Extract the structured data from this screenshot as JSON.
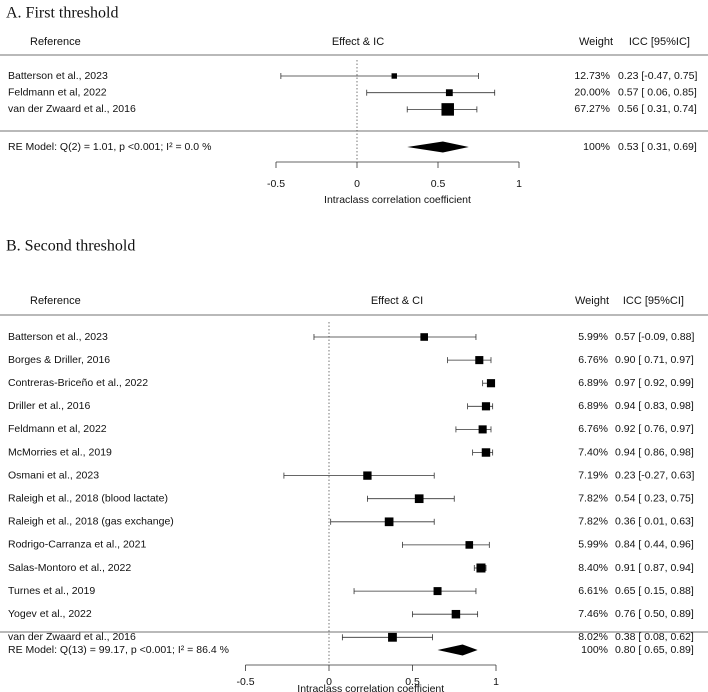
{
  "chart_data": [
    {
      "type": "forest",
      "title": "A. First threshold",
      "headers": {
        "reference": "Reference",
        "effect": "Effect & IC",
        "weight": "Weight",
        "icc": "ICC [95%IC]"
      },
      "studies": [
        {
          "reference": "Batterson et al., 2023",
          "est": 0.23,
          "lo": -0.47,
          "hi": 0.75,
          "weight": 12.73,
          "weight_text": "12.73%",
          "icc_text": "0.23 [-0.47, 0.75]"
        },
        {
          "reference": "Feldmann et al, 2022",
          "est": 0.57,
          "lo": 0.06,
          "hi": 0.85,
          "weight": 20.0,
          "weight_text": "20.00%",
          "icc_text": "0.57 [ 0.06, 0.85]"
        },
        {
          "reference": "van der Zwaard et al., 2016",
          "est": 0.56,
          "lo": 0.31,
          "hi": 0.74,
          "weight": 67.27,
          "weight_text": "67.27%",
          "icc_text": "0.56 [ 0.31, 0.74]"
        }
      ],
      "summary": {
        "label": "RE Model: Q(2) = 1.01, p <0.001; I² = 0.0 %",
        "est": 0.53,
        "lo": 0.31,
        "hi": 0.69,
        "weight_text": "100%",
        "icc_text": "0.53 [ 0.31, 0.69]"
      },
      "x_ticks": [
        -0.5,
        0,
        0.5,
        1
      ],
      "x_tick_labels": [
        "-0.5",
        "0",
        "0.5",
        "1"
      ],
      "xlim": [
        -0.5,
        1
      ],
      "xlabel": "Intraclass correlation coefficient"
    },
    {
      "type": "forest",
      "title": "B. Second threshold",
      "headers": {
        "reference": "Reference",
        "effect": "Effect & CI",
        "weight": "Weight",
        "icc": "ICC [95%CI]"
      },
      "studies": [
        {
          "reference": "Batterson et al., 2023",
          "est": 0.57,
          "lo": -0.09,
          "hi": 0.88,
          "weight": 5.99,
          "weight_text": "5.99%",
          "icc_text": "0.57 [-0.09, 0.88]"
        },
        {
          "reference": "Borges & Driller, 2016",
          "est": 0.9,
          "lo": 0.71,
          "hi": 0.97,
          "weight": 6.76,
          "weight_text": "6.76%",
          "icc_text": "0.90 [ 0.71, 0.97]"
        },
        {
          "reference": "Contreras-Briceño et al., 2022",
          "est": 0.97,
          "lo": 0.92,
          "hi": 0.99,
          "weight": 6.89,
          "weight_text": "6.89%",
          "icc_text": "0.97 [ 0.92, 0.99]"
        },
        {
          "reference": "Driller et al., 2016",
          "est": 0.94,
          "lo": 0.83,
          "hi": 0.98,
          "weight": 6.89,
          "weight_text": "6.89%",
          "icc_text": "0.94 [ 0.83, 0.98]"
        },
        {
          "reference": "Feldmann et al, 2022",
          "est": 0.92,
          "lo": 0.76,
          "hi": 0.97,
          "weight": 6.76,
          "weight_text": "6.76%",
          "icc_text": "0.92 [ 0.76, 0.97]"
        },
        {
          "reference": "McMorries et al., 2019",
          "est": 0.94,
          "lo": 0.86,
          "hi": 0.98,
          "weight": 7.4,
          "weight_text": "7.40%",
          "icc_text": "0.94 [ 0.86, 0.98]"
        },
        {
          "reference": "Osmani et al., 2023",
          "est": 0.23,
          "lo": -0.27,
          "hi": 0.63,
          "weight": 7.19,
          "weight_text": "7.19%",
          "icc_text": "0.23 [-0.27, 0.63]"
        },
        {
          "reference": "Raleigh et al., 2018 (blood lactate)",
          "est": 0.54,
          "lo": 0.23,
          "hi": 0.75,
          "weight": 7.82,
          "weight_text": "7.82%",
          "icc_text": "0.54 [ 0.23, 0.75]"
        },
        {
          "reference": "Raleigh et al., 2018 (gas exchange)",
          "est": 0.36,
          "lo": 0.01,
          "hi": 0.63,
          "weight": 7.82,
          "weight_text": "7.82%",
          "icc_text": "0.36 [ 0.01, 0.63]"
        },
        {
          "reference": "Rodrigo-Carranza et al., 2021",
          "est": 0.84,
          "lo": 0.44,
          "hi": 0.96,
          "weight": 5.99,
          "weight_text": "5.99%",
          "icc_text": "0.84 [ 0.44, 0.96]"
        },
        {
          "reference": "Salas-Montoro et al., 2022",
          "est": 0.91,
          "lo": 0.87,
          "hi": 0.94,
          "weight": 8.4,
          "weight_text": "8.40%",
          "icc_text": "0.91 [ 0.87, 0.94]"
        },
        {
          "reference": "Turnes et al., 2019",
          "est": 0.65,
          "lo": 0.15,
          "hi": 0.88,
          "weight": 6.61,
          "weight_text": "6.61%",
          "icc_text": "0.65 [ 0.15, 0.88]"
        },
        {
          "reference": "Yogev et al., 2022",
          "est": 0.76,
          "lo": 0.5,
          "hi": 0.89,
          "weight": 7.46,
          "weight_text": "7.46%",
          "icc_text": "0.76 [ 0.50, 0.89]"
        },
        {
          "reference": "van der Zwaard et al., 2016",
          "est": 0.38,
          "lo": 0.08,
          "hi": 0.62,
          "weight": 8.02,
          "weight_text": "8.02%",
          "icc_text": "0.38 [ 0.08, 0.62]"
        }
      ],
      "summary": {
        "label": "RE Model: Q(13) = 99.17, p <0.001; I² = 86.4 %",
        "est": 0.8,
        "lo": 0.65,
        "hi": 0.89,
        "weight_text": "100%",
        "icc_text": "0.80 [ 0.65, 0.89]"
      },
      "x_ticks": [
        -0.5,
        0,
        0.5,
        1
      ],
      "x_tick_labels": [
        "-0.5",
        "0",
        "0.5",
        "1"
      ],
      "xlim": [
        -0.5,
        1
      ],
      "xlabel": "Intraclass correlation coefficient"
    }
  ]
}
